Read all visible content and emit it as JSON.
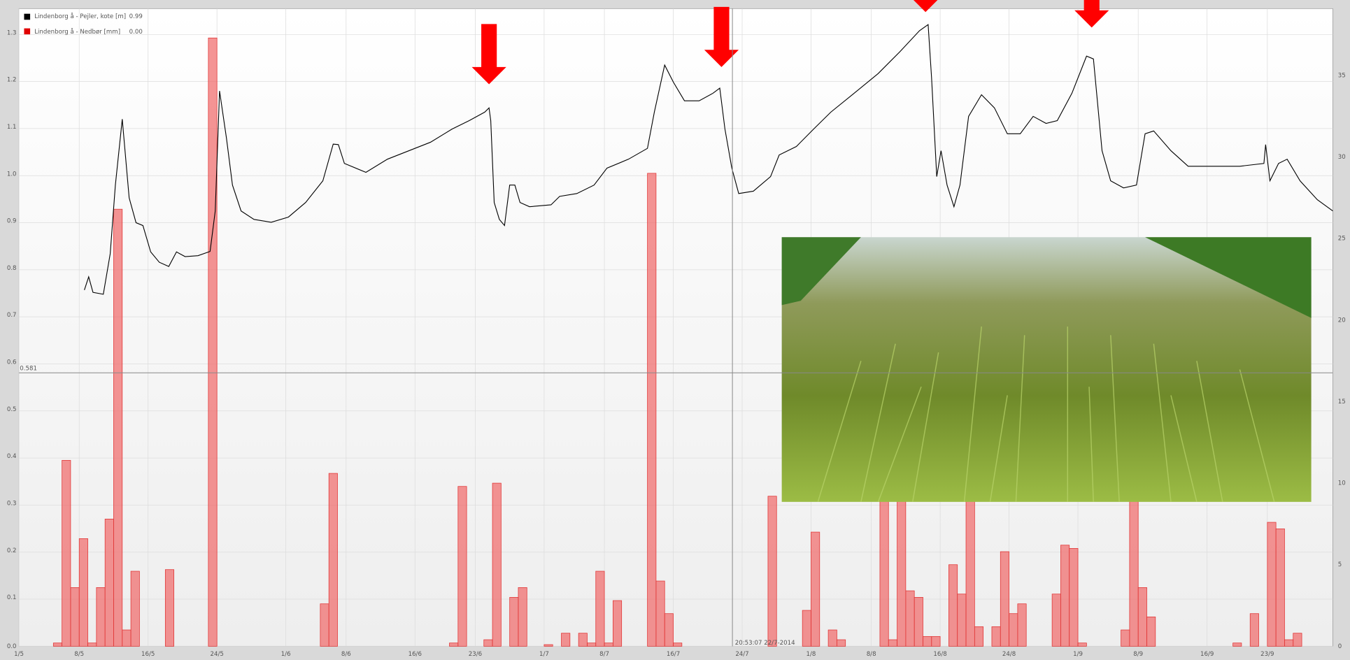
{
  "chart_data": {
    "type": "bar-line",
    "legend": [
      {
        "name": "Lindenborg å - Pejler, kote [m]",
        "color": "#000000",
        "readout": "0.99"
      },
      {
        "name": "Lindenborg å - Nedbør [mm]",
        "color": "#e00000",
        "readout": "0.00"
      }
    ],
    "xlim": [
      0,
      152.6
    ],
    "xticks": [
      {
        "value": 0,
        "label": "1/5"
      },
      {
        "value": 7,
        "label": "8/5"
      },
      {
        "value": 15,
        "label": "16/5"
      },
      {
        "value": 23,
        "label": "24/5"
      },
      {
        "value": 31,
        "label": "1/6"
      },
      {
        "value": 38,
        "label": "8/6"
      },
      {
        "value": 46,
        "label": "16/6"
      },
      {
        "value": 53,
        "label": "23/6"
      },
      {
        "value": 61,
        "label": "1/7"
      },
      {
        "value": 68,
        "label": "8/7"
      },
      {
        "value": 76,
        "label": "16/7"
      },
      {
        "value": 84,
        "label": "24/7"
      },
      {
        "value": 92,
        "label": "1/8"
      },
      {
        "value": 99,
        "label": "8/8"
      },
      {
        "value": 107,
        "label": "16/8"
      },
      {
        "value": 115,
        "label": "24/8"
      },
      {
        "value": 123,
        "label": "1/9"
      },
      {
        "value": 130,
        "label": "8/9"
      },
      {
        "value": 138,
        "label": "16/9"
      },
      {
        "value": 145,
        "label": "23/9"
      }
    ],
    "ylim": [
      0,
      1.355
    ],
    "yticks": [
      {
        "value": 0,
        "label": "0.0"
      },
      0.1,
      0.2,
      0.3,
      0.4,
      0.5,
      0.6,
      0.7,
      0.8,
      0.9,
      {
        "value": 1,
        "label": "1.0"
      },
      1.1,
      1.2,
      1.3
    ],
    "y2lim": [
      0,
      39.1
    ],
    "y2ticks": [
      0,
      5,
      10,
      15,
      20,
      25,
      30,
      35
    ],
    "grid": true,
    "cursor": {
      "y": 0.581,
      "x": 82.87,
      "time_label": "20:53:07 22/7-2014"
    },
    "series": [
      {
        "name": "Lindenborg å - Nedbør [mm]",
        "type": "bar",
        "axis": "y2",
        "color": "#f07070",
        "x": [
          4,
          5,
          6,
          7,
          8,
          9,
          10,
          11,
          12,
          13,
          17,
          22,
          35,
          36,
          50,
          51,
          54,
          55,
          57,
          58,
          61,
          63,
          65,
          66,
          67,
          68,
          69,
          73,
          74,
          75,
          76,
          87,
          91,
          92,
          94,
          95,
          100,
          101,
          102,
          103,
          104,
          105,
          106,
          108,
          109,
          110,
          111,
          113,
          114,
          115,
          116,
          120,
          121,
          122,
          123,
          128,
          129,
          130,
          131,
          141,
          143,
          145,
          146,
          147,
          148
        ],
        "values": [
          0.2,
          11.4,
          3.6,
          6.6,
          0.2,
          3.6,
          7.8,
          26.8,
          1.0,
          4.6,
          4.7,
          37.3,
          2.6,
          10.6,
          0.2,
          9.8,
          0.4,
          10.0,
          3.0,
          3.6,
          0.1,
          0.8,
          0.8,
          0.2,
          4.6,
          0.2,
          2.8,
          29.0,
          4.0,
          2.0,
          0.2,
          9.2,
          2.2,
          7.0,
          1.0,
          0.4,
          12.0,
          0.4,
          12.0,
          3.4,
          3.0,
          0.6,
          0.6,
          5.0,
          3.2,
          12.0,
          1.2,
          1.2,
          5.8,
          2.0,
          2.6,
          3.2,
          6.2,
          6.0,
          0.2,
          1.0,
          10.0,
          3.6,
          1.8,
          0.2,
          2.0,
          7.6,
          7.2,
          0.4,
          0.8
        ]
      },
      {
        "name": "Lindenborg å - Pejler, kote [m]",
        "type": "line",
        "axis": "y",
        "color": "#000000",
        "x": [
          7.6,
          8.1,
          8.6,
          9.8,
          10.6,
          11.2,
          12.0,
          12.8,
          13.6,
          14.4,
          15.3,
          16.3,
          17.4,
          18.3,
          19.3,
          20.8,
          22.2,
          22.8,
          23.3,
          24.1,
          24.8,
          25.8,
          27.3,
          29.3,
          31.3,
          33.3,
          35.3,
          36.5,
          37.1,
          37.8,
          40.3,
          42.8,
          45.3,
          47.8,
          50.3,
          52.3,
          54.1,
          54.6,
          54.8,
          55.2,
          55.8,
          56.4,
          57.0,
          57.6,
          58.2,
          59.3,
          61.8,
          62.8,
          64.8,
          66.8,
          68.3,
          70.8,
          73.0,
          73.8,
          75.0,
          76.0,
          77.3,
          79.0,
          80.6,
          81.4,
          82.0,
          82.8,
          83.6,
          85.3,
          87.3,
          88.3,
          90.3,
          92.3,
          94.3,
          96.8,
          99.8,
          102.3,
          104.6,
          105.6,
          106.0,
          106.6,
          107.1,
          107.8,
          108.6,
          109.3,
          110.3,
          111.8,
          113.3,
          114.8,
          116.3,
          117.8,
          119.3,
          120.6,
          122.3,
          124.0,
          124.8,
          125.8,
          126.8,
          128.3,
          129.8,
          130.8,
          131.8,
          133.8,
          135.8,
          138.8,
          141.8,
          144.6,
          144.8,
          145.3,
          146.3,
          147.3,
          148.8,
          150.8,
          152.6
        ],
        "values": [
          0.757,
          0.785,
          0.752,
          0.748,
          0.834,
          0.98,
          1.12,
          0.953,
          0.9,
          0.894,
          0.838,
          0.816,
          0.807,
          0.838,
          0.828,
          0.83,
          0.839,
          0.925,
          1.18,
          1.08,
          0.98,
          0.925,
          0.907,
          0.901,
          0.912,
          0.943,
          0.989,
          1.067,
          1.066,
          1.026,
          1.007,
          1.035,
          1.053,
          1.071,
          1.099,
          1.117,
          1.135,
          1.144,
          1.117,
          0.943,
          0.907,
          0.894,
          0.98,
          0.98,
          0.943,
          0.934,
          0.938,
          0.956,
          0.962,
          0.98,
          1.016,
          1.035,
          1.058,
          1.135,
          1.235,
          1.199,
          1.159,
          1.159,
          1.175,
          1.186,
          1.099,
          1.016,
          0.962,
          0.967,
          0.998,
          1.044,
          1.062,
          1.099,
          1.135,
          1.172,
          1.217,
          1.263,
          1.308,
          1.321,
          1.208,
          0.998,
          1.053,
          0.98,
          0.934,
          0.98,
          1.126,
          1.172,
          1.144,
          1.089,
          1.089,
          1.126,
          1.111,
          1.117,
          1.175,
          1.254,
          1.248,
          1.053,
          0.989,
          0.974,
          0.98,
          1.089,
          1.095,
          1.053,
          1.02,
          1.02,
          1.02,
          1.026,
          1.066,
          0.989,
          1.026,
          1.035,
          0.989,
          0.949,
          0.925
        ]
      }
    ]
  }
}
